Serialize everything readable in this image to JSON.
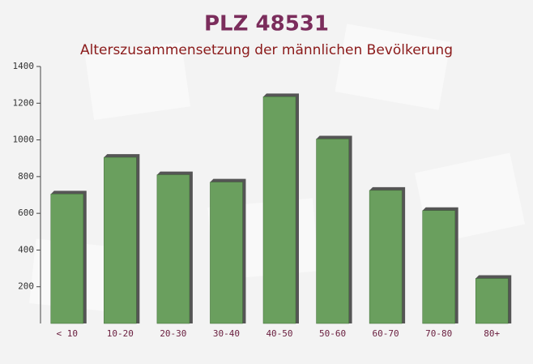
{
  "chart_data": {
    "type": "bar",
    "title": "PLZ 48531",
    "subtitle": "Alterszusammensetzung der männlichen Bevölkerung",
    "categories": [
      "< 10",
      "10-20",
      "20-30",
      "30-40",
      "40-50",
      "50-60",
      "60-70",
      "70-80",
      "80+"
    ],
    "values": [
      705,
      905,
      810,
      770,
      1235,
      1005,
      725,
      615,
      245
    ],
    "color": "#6a9f5e",
    "ylim": [
      0,
      1400
    ],
    "yticks": [
      200,
      400,
      600,
      800,
      1000,
      1200,
      1400
    ],
    "grid": false
  }
}
